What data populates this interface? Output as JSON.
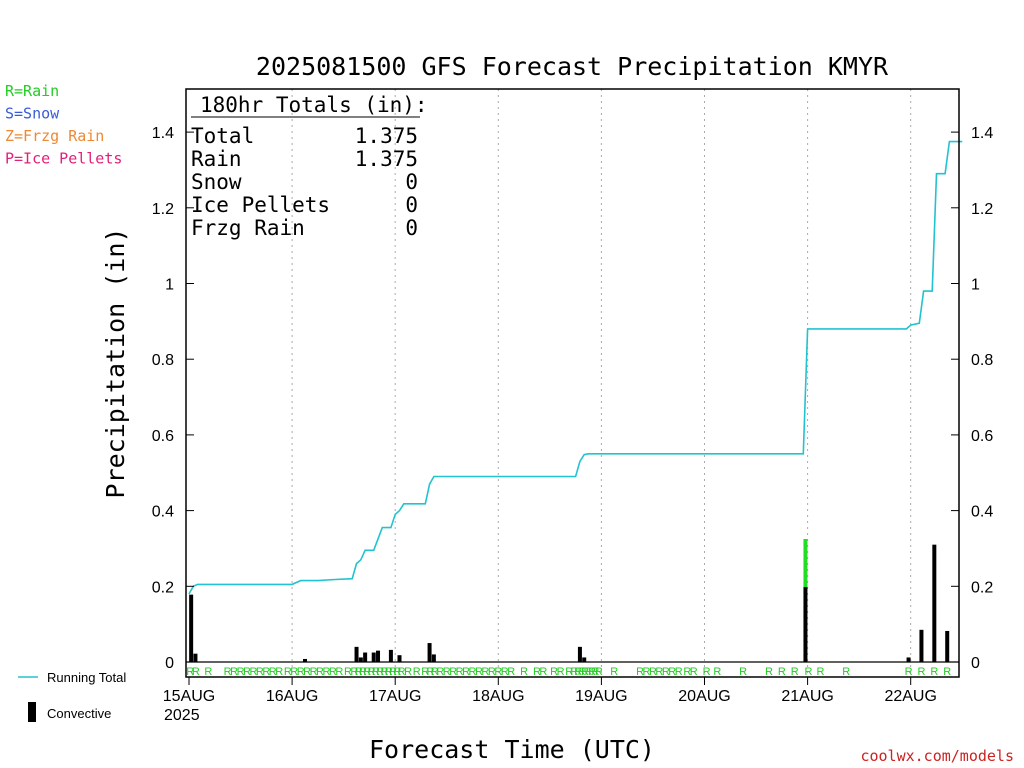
{
  "chart_data": {
    "type": "bar",
    "title": "2025081500 GFS Forecast Precipitation KMYR",
    "xlabel": "Forecast Time (UTC)",
    "ylabel": "Precipitation (in)",
    "ylim": [
      0,
      1.5
    ],
    "yticks": [
      "0",
      "0.2",
      "0.4",
      "0.6",
      "0.8",
      "1",
      "1.2",
      "1.4"
    ],
    "x_unit": "hours since 15AUG 00Z",
    "xlim": [
      0,
      186
    ],
    "xticks": [
      {
        "label": "15AUG",
        "hour": 0
      },
      {
        "label": "16AUG",
        "hour": 24
      },
      {
        "label": "17AUG",
        "hour": 48
      },
      {
        "label": "18AUG",
        "hour": 72
      },
      {
        "label": "19AUG",
        "hour": 96
      },
      {
        "label": "20AUG",
        "hour": 120
      },
      {
        "label": "21AUG",
        "hour": 144
      },
      {
        "label": "22AUG",
        "hour": 168
      }
    ],
    "year_label": "2025",
    "precip_type_legend": [
      {
        "text": "R=Rain",
        "color": "#22cc22"
      },
      {
        "text": "S=Snow",
        "color": "#3a5bd9"
      },
      {
        "text": "Z=Frzg Rain",
        "color": "#ee8833"
      },
      {
        "text": "P=Ice Pellets",
        "color": "#e0207a"
      }
    ],
    "totals_box": {
      "heading": "180hr Totals (in):",
      "rows": [
        {
          "label": "Total",
          "value": "1.375"
        },
        {
          "label": "Rain",
          "value": "1.375"
        },
        {
          "label": "Snow",
          "value": "0"
        },
        {
          "label": "Ice Pellets",
          "value": "0"
        },
        {
          "label": "Frzg Rain",
          "value": "0"
        }
      ]
    },
    "series": [
      {
        "name": "Running Total",
        "color": "#22c3d0",
        "points": [
          [
            0,
            0.18
          ],
          [
            1,
            0.2
          ],
          [
            2,
            0.205
          ],
          [
            24,
            0.205
          ],
          [
            26,
            0.215
          ],
          [
            30,
            0.215
          ],
          [
            34,
            0.218
          ],
          [
            38,
            0.22
          ],
          [
            39,
            0.26
          ],
          [
            40,
            0.27
          ],
          [
            41,
            0.295
          ],
          [
            43,
            0.295
          ],
          [
            45,
            0.355
          ],
          [
            47,
            0.355
          ],
          [
            48,
            0.39
          ],
          [
            49,
            0.4
          ],
          [
            50,
            0.418
          ],
          [
            55,
            0.418
          ],
          [
            56,
            0.47
          ],
          [
            57,
            0.49
          ],
          [
            66,
            0.49
          ],
          [
            78,
            0.49
          ],
          [
            90,
            0.49
          ],
          [
            91,
            0.53
          ],
          [
            92,
            0.548
          ],
          [
            93,
            0.55
          ],
          [
            120,
            0.55
          ],
          [
            142,
            0.55
          ],
          [
            143,
            0.55
          ],
          [
            144,
            0.88
          ],
          [
            156,
            0.88
          ],
          [
            167,
            0.88
          ],
          [
            168,
            0.89
          ],
          [
            170,
            0.895
          ],
          [
            171,
            0.98
          ],
          [
            173,
            0.98
          ],
          [
            174,
            1.29
          ],
          [
            176,
            1.29
          ],
          [
            177,
            1.375
          ],
          [
            180,
            1.375
          ]
        ]
      },
      {
        "name": "Convective",
        "color": "#000000",
        "bars": [
          {
            "hour": 0.5,
            "total": 0.178,
            "convective": 0.178
          },
          {
            "hour": 1.5,
            "total": 0.022,
            "convective": 0.022
          },
          {
            "hour": 27,
            "total": 0.008,
            "convective": 0.008
          },
          {
            "hour": 39,
            "total": 0.04,
            "convective": 0.04
          },
          {
            "hour": 40,
            "total": 0.012,
            "convective": 0.012
          },
          {
            "hour": 41,
            "total": 0.025,
            "convective": 0.025
          },
          {
            "hour": 43,
            "total": 0.025,
            "convective": 0.025
          },
          {
            "hour": 44,
            "total": 0.03,
            "convective": 0.03
          },
          {
            "hour": 47,
            "total": 0.032,
            "convective": 0.032
          },
          {
            "hour": 49,
            "total": 0.018,
            "convective": 0.018
          },
          {
            "hour": 56,
            "total": 0.05,
            "convective": 0.05
          },
          {
            "hour": 57,
            "total": 0.02,
            "convective": 0.02
          },
          {
            "hour": 91,
            "total": 0.04,
            "convective": 0.04
          },
          {
            "hour": 92,
            "total": 0.012,
            "convective": 0.012
          },
          {
            "hour": 143.5,
            "total": 0.325,
            "convective": 0.198
          },
          {
            "hour": 167.5,
            "total": 0.012,
            "convective": 0.012
          },
          {
            "hour": 170.5,
            "total": 0.085,
            "convective": 0.085
          },
          {
            "hour": 173.5,
            "total": 0.31,
            "convective": 0.31
          },
          {
            "hour": 176.5,
            "total": 0.082,
            "convective": 0.082
          }
        ]
      }
    ],
    "type_markers": {
      "char": "R",
      "hours": [
        0.3,
        1.6,
        4.5,
        9,
        10.5,
        12,
        13.5,
        15,
        16.5,
        18,
        19.5,
        21,
        23,
        24.5,
        26,
        27.5,
        29,
        30.5,
        32,
        33.5,
        35,
        37,
        38.5,
        39.5,
        40.5,
        41.5,
        42.5,
        43.5,
        44.5,
        45.5,
        46.5,
        47.5,
        48.5,
        49.5,
        51,
        53,
        55,
        56.2,
        57.2,
        58.5,
        60,
        61.5,
        63,
        64.5,
        66,
        67.5,
        69,
        70.5,
        72,
        73.5,
        75,
        78,
        81,
        82.5,
        85,
        86.5,
        88.5,
        89.7,
        90.6,
        91.4,
        92.2,
        93,
        93.8,
        94.6,
        95.4,
        99,
        105,
        106.5,
        108,
        109.5,
        111,
        112.5,
        114,
        116,
        117.5,
        120.5,
        123,
        129,
        135,
        138,
        141,
        144.2,
        147,
        153,
        167.5,
        170.5,
        173.5,
        176.5
      ]
    },
    "bottom_legend": [
      {
        "text": "Running Total"
      },
      {
        "text": "Convective"
      }
    ],
    "credit": "coolwx.com/models",
    "credit_color": "#cc2222",
    "grid": "vertical dotted at day boundaries"
  }
}
